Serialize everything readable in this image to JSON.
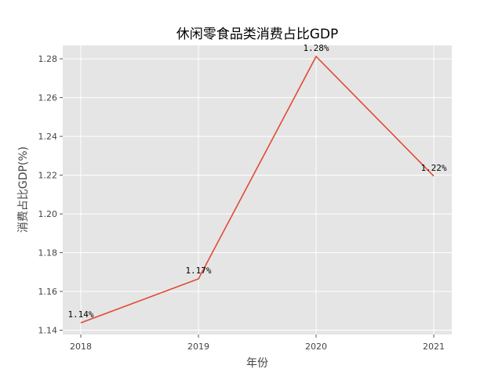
{
  "chart_data": {
    "type": "line",
    "title": "休闲零食品类消费占比GDP",
    "xlabel": "年份",
    "ylabel": "消费占比GDP(%)",
    "categories": [
      "2018",
      "2019",
      "2020",
      "2021"
    ],
    "values": [
      1.1438,
      1.1665,
      1.2812,
      1.2195
    ],
    "data_labels": [
      "1.14%",
      "1.17%",
      "1.28%",
      "1.22%"
    ],
    "ylim": [
      1.1378,
      1.2869
    ],
    "yticks": [
      1.14,
      1.16,
      1.18,
      1.2,
      1.22,
      1.24,
      1.26,
      1.28
    ],
    "ytick_labels": [
      "1.14",
      "1.16",
      "1.18",
      "1.20",
      "1.22",
      "1.24",
      "1.26",
      "1.28"
    ],
    "grid": true,
    "line_color": "#E24A33",
    "plot_background": "#E5E5E5"
  }
}
